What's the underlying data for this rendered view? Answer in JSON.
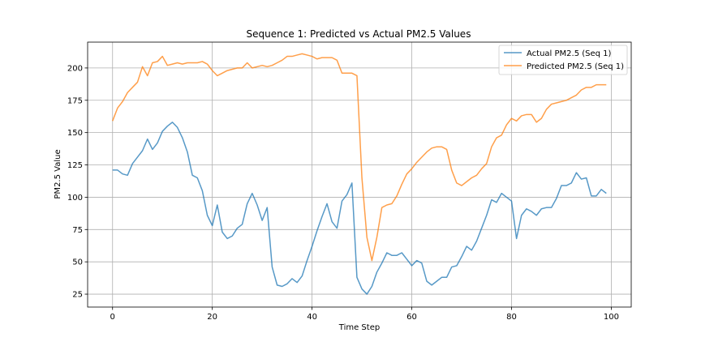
{
  "chart_data": {
    "type": "line",
    "title": "Sequence 1: Predicted vs Actual PM2.5 Values",
    "xlabel": "Time Step",
    "ylabel": "PM2.5 Value",
    "xlim": [
      -5,
      104
    ],
    "ylim": [
      15,
      220
    ],
    "xticks": [
      0,
      20,
      40,
      60,
      80,
      100
    ],
    "yticks": [
      25,
      50,
      75,
      100,
      125,
      150,
      175,
      200
    ],
    "grid": true,
    "legend_position": "top-right",
    "series": [
      {
        "name": "Actual PM2.5 (Seq 1)",
        "color": "#1f77b4",
        "values": [
          121,
          121,
          118,
          117,
          126,
          131,
          136,
          145,
          137,
          142,
          151,
          155,
          158,
          154,
          146,
          135,
          117,
          115,
          105,
          86,
          78,
          94,
          73,
          68,
          70,
          76,
          79,
          95,
          103,
          94,
          82,
          92,
          46,
          32,
          31,
          33,
          37,
          34,
          39,
          51,
          62,
          74,
          85,
          95,
          81,
          76,
          97,
          102,
          111,
          38,
          29,
          25,
          31,
          42,
          49,
          57,
          55,
          55,
          57,
          52,
          47,
          51,
          49,
          35,
          32,
          35,
          38,
          38,
          46,
          47,
          54,
          62,
          59,
          66,
          76,
          86,
          98,
          96,
          103,
          100,
          97,
          68,
          86,
          91,
          89,
          86,
          91,
          92,
          92,
          99,
          109,
          109,
          111,
          119,
          114,
          115,
          101,
          101,
          106,
          103
        ]
      },
      {
        "name": "Predicted PM2.5 (Seq 1)",
        "color": "#ff7f0e",
        "values": [
          159,
          169,
          174,
          181,
          185,
          189,
          201,
          194,
          204,
          205,
          209,
          202,
          203,
          204,
          203,
          204,
          204,
          204,
          205,
          203,
          198,
          194,
          196,
          198,
          199,
          200,
          200,
          204,
          200,
          201,
          202,
          201,
          202,
          204,
          206,
          209,
          209,
          210,
          211,
          210,
          209,
          207,
          208,
          208,
          208,
          206,
          196,
          196,
          196,
          194,
          115,
          69,
          51,
          69,
          92,
          94,
          95,
          101,
          110,
          118,
          122,
          127,
          131,
          135,
          138,
          139,
          139,
          137,
          121,
          111,
          109,
          112,
          115,
          117,
          122,
          126,
          139,
          146,
          148,
          156,
          161,
          159,
          163,
          164,
          164,
          158,
          161,
          168,
          172,
          173,
          174,
          175,
          177,
          179,
          183,
          185,
          185,
          187,
          187,
          187
        ]
      }
    ]
  }
}
